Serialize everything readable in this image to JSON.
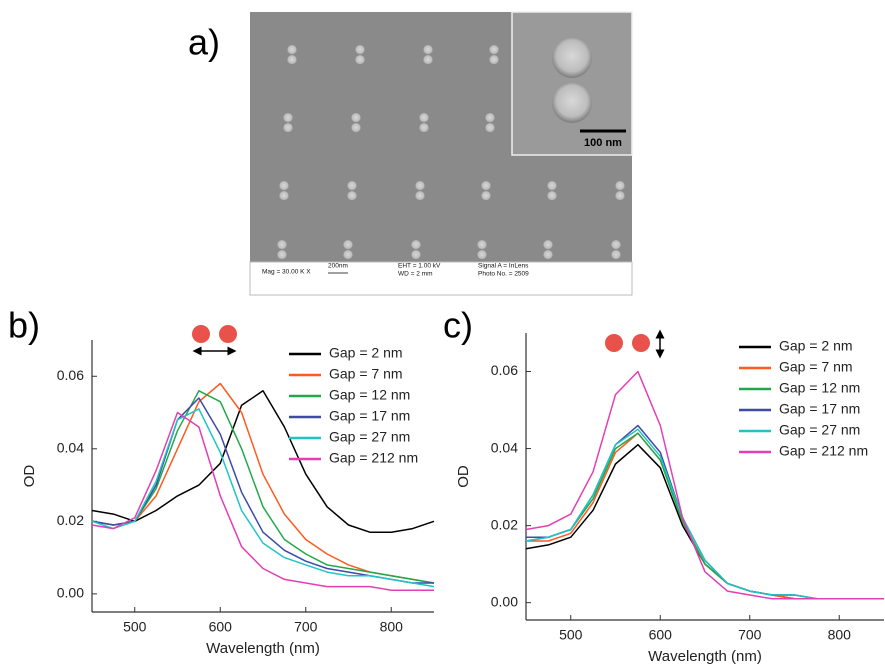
{
  "panel_labels": [
    "a)",
    "b)",
    "c)"
  ],
  "sem_image": {
    "scale_bar": "100 nm",
    "info": [
      "Mag = 30.00 K X",
      "200nm",
      "EHT = 1.00 kV",
      "WD = 2 mm",
      "Signal A = InLens",
      "Photo No. = 2509"
    ]
  },
  "chart_data": [
    {
      "type": "line",
      "xlabel": "Wavelength (nm)",
      "ylabel": "OD",
      "x": [
        450,
        475,
        500,
        525,
        550,
        575,
        600,
        625,
        650,
        675,
        700,
        725,
        750,
        775,
        800,
        825,
        850
      ],
      "xlim": [
        450,
        850
      ],
      "ylim": [
        -0.005,
        0.07
      ],
      "xticks": [
        500,
        600,
        700,
        800
      ],
      "yticks": [
        {
          "value": 0,
          "label": "0.00"
        },
        0.02,
        0.04,
        0.06
      ],
      "legend": "upper right",
      "series": [
        {
          "name": "Gap = 2 nm",
          "color": "#000000",
          "values": [
            0.023,
            0.022,
            0.02,
            0.023,
            0.027,
            0.03,
            0.036,
            0.052,
            0.056,
            0.046,
            0.033,
            0.024,
            0.019,
            0.017,
            0.017,
            0.018,
            0.02
          ]
        },
        {
          "name": "Gap = 7 nm",
          "color": "#ff5a1f",
          "values": [
            0.02,
            0.019,
            0.02,
            0.027,
            0.04,
            0.053,
            0.058,
            0.05,
            0.033,
            0.022,
            0.015,
            0.011,
            0.008,
            0.006,
            0.005,
            0.004,
            0.003
          ]
        },
        {
          "name": "Gap = 12 nm",
          "color": "#22a84a",
          "values": [
            0.02,
            0.019,
            0.02,
            0.029,
            0.045,
            0.056,
            0.053,
            0.04,
            0.024,
            0.015,
            0.011,
            0.008,
            0.007,
            0.006,
            0.005,
            0.004,
            0.003
          ]
        },
        {
          "name": "Gap = 17 nm",
          "color": "#3d4aa8",
          "values": [
            0.02,
            0.019,
            0.02,
            0.03,
            0.048,
            0.054,
            0.044,
            0.028,
            0.017,
            0.012,
            0.009,
            0.007,
            0.006,
            0.005,
            0.004,
            0.003,
            0.003
          ]
        },
        {
          "name": "Gap = 27 nm",
          "color": "#1fc4c4",
          "values": [
            0.02,
            0.018,
            0.02,
            0.031,
            0.048,
            0.051,
            0.039,
            0.023,
            0.014,
            0.01,
            0.008,
            0.006,
            0.005,
            0.005,
            0.004,
            0.003,
            0.002
          ]
        },
        {
          "name": "Gap = 212 nm",
          "color": "#e23fb4",
          "values": [
            0.019,
            0.018,
            0.021,
            0.034,
            0.05,
            0.046,
            0.027,
            0.013,
            0.007,
            0.004,
            0.003,
            0.002,
            0.002,
            0.002,
            0.001,
            0.001,
            0.001
          ]
        }
      ]
    },
    {
      "type": "line",
      "xlabel": "Wavelength (nm)",
      "ylabel": "OD",
      "x": [
        450,
        475,
        500,
        525,
        550,
        575,
        600,
        625,
        650,
        675,
        700,
        725,
        750,
        775,
        800,
        825,
        850
      ],
      "xlim": [
        450,
        850
      ],
      "ylim": [
        -0.0045,
        0.07
      ],
      "xticks": [
        500,
        600,
        700,
        800
      ],
      "yticks": [
        {
          "value": 0,
          "label": "0.00"
        },
        0.02,
        0.04,
        0.06
      ],
      "legend": "upper right",
      "series": [
        {
          "name": "Gap = 2 nm",
          "color": "#000000",
          "values": [
            0.014,
            0.015,
            0.017,
            0.024,
            0.036,
            0.041,
            0.035,
            0.02,
            0.01,
            0.005,
            0.003,
            0.002,
            0.001,
            0.001,
            0.001,
            0.001,
            0.001
          ]
        },
        {
          "name": "Gap = 7 nm",
          "color": "#ff5a1f",
          "values": [
            0.016,
            0.016,
            0.018,
            0.026,
            0.039,
            0.044,
            0.037,
            0.021,
            0.01,
            0.005,
            0.003,
            0.002,
            0.001,
            0.001,
            0.001,
            0.001,
            0.001
          ]
        },
        {
          "name": "Gap = 12 nm",
          "color": "#22a84a",
          "values": [
            0.016,
            0.017,
            0.019,
            0.027,
            0.04,
            0.044,
            0.037,
            0.021,
            0.01,
            0.005,
            0.003,
            0.002,
            0.002,
            0.001,
            0.001,
            0.001,
            0.001
          ]
        },
        {
          "name": "Gap = 17 nm",
          "color": "#3d4aa8",
          "values": [
            0.017,
            0.017,
            0.019,
            0.028,
            0.041,
            0.046,
            0.039,
            0.022,
            0.011,
            0.005,
            0.003,
            0.002,
            0.002,
            0.001,
            0.001,
            0.001,
            0.001
          ]
        },
        {
          "name": "Gap = 27 nm",
          "color": "#1fc4c4",
          "values": [
            0.016,
            0.017,
            0.019,
            0.028,
            0.041,
            0.045,
            0.038,
            0.022,
            0.011,
            0.005,
            0.003,
            0.002,
            0.002,
            0.001,
            0.001,
            0.001,
            0.001
          ]
        },
        {
          "name": "Gap = 212 nm",
          "color": "#e23fb4",
          "values": [
            0.019,
            0.02,
            0.023,
            0.034,
            0.054,
            0.06,
            0.046,
            0.022,
            0.008,
            0.003,
            0.002,
            0.001,
            0.001,
            0.001,
            0.001,
            0.001,
            0.001
          ]
        }
      ]
    }
  ]
}
